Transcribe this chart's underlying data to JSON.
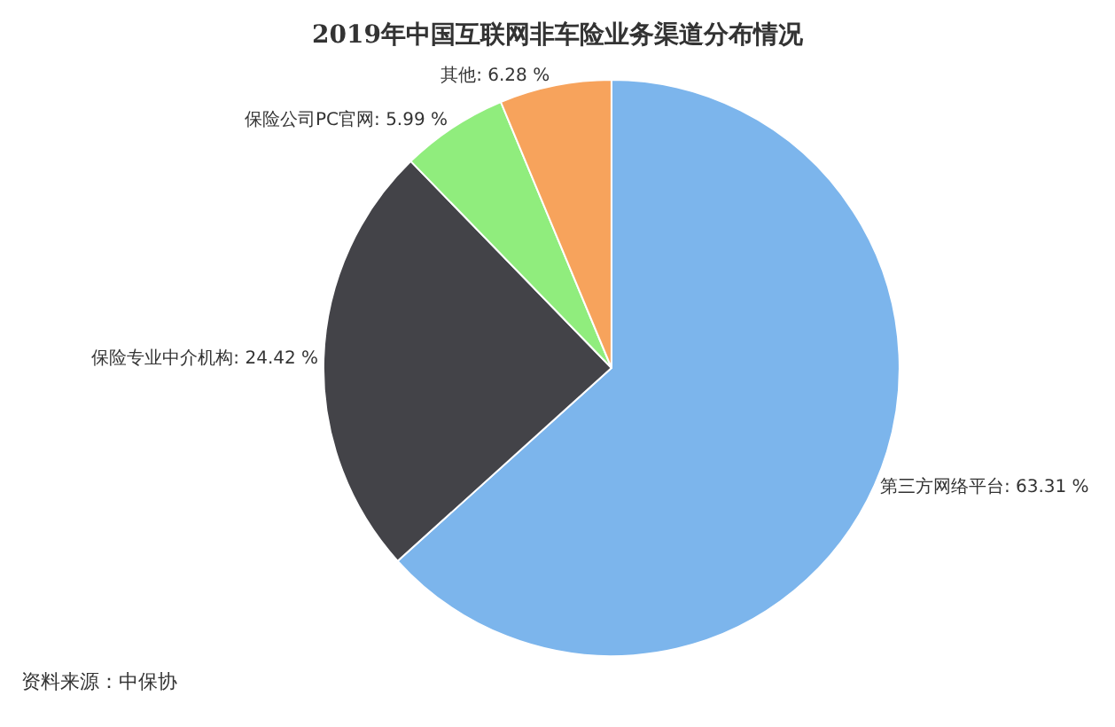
{
  "chart_data": {
    "type": "pie",
    "title": "2019年中国互联网非车险业务渠道分布情况",
    "categories": [
      "第三方网络平台",
      "保险专业中介机构",
      "保险公司PC官网",
      "其他"
    ],
    "values": [
      63.31,
      24.42,
      5.99,
      6.28
    ],
    "value_labels": [
      "63.31 %",
      "24.42 %",
      "5.99 %",
      "6.28 %"
    ],
    "colors": [
      "#7cb5ec",
      "#434348",
      "#90ed7d",
      "#f7a35c"
    ],
    "legend": false,
    "annotations": [
      "资料来源：中保协"
    ]
  }
}
